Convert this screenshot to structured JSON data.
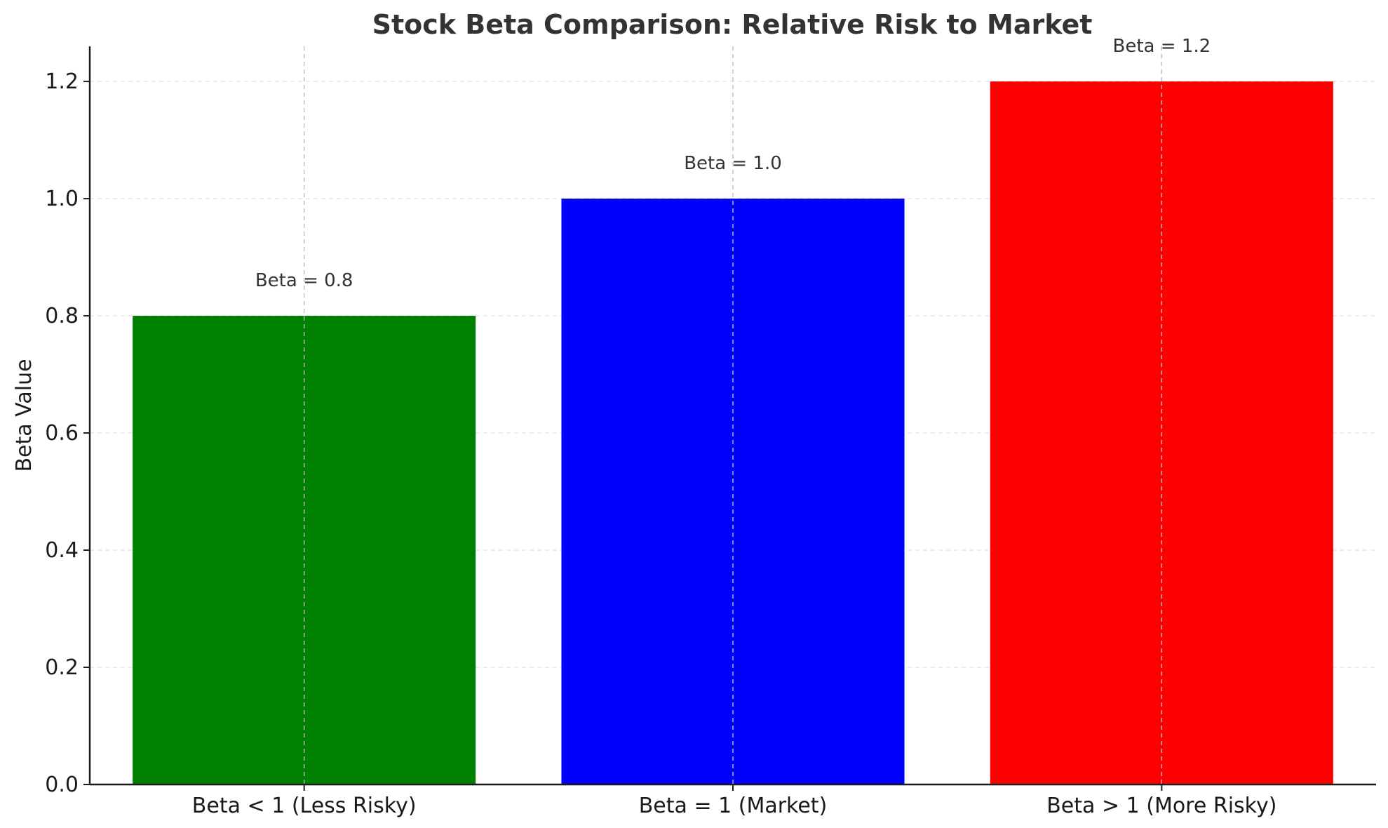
{
  "chart_data": {
    "type": "bar",
    "title": "Stock Beta Comparison: Relative Risk to Market",
    "xlabel": "",
    "ylabel": "Beta Value",
    "categories": [
      "Beta < 1 (Less Risky)",
      "Beta = 1 (Market)",
      "Beta > 1 (More Risky)"
    ],
    "values": [
      0.8,
      1.0,
      1.2
    ],
    "colors": [
      "#008000",
      "#0000ff",
      "#ff0000"
    ],
    "data_labels": [
      "Beta = 0.8",
      "Beta = 1.0",
      "Beta = 1.2"
    ],
    "ylim": [
      0,
      1.26
    ],
    "yticks": [
      0.0,
      0.2,
      0.4,
      0.6,
      0.8,
      1.0,
      1.2
    ],
    "ytick_labels": [
      "0.0",
      "0.2",
      "0.4",
      "0.6",
      "0.8",
      "1.0",
      "1.2"
    ],
    "grid": true,
    "grid_style": "dashed"
  }
}
